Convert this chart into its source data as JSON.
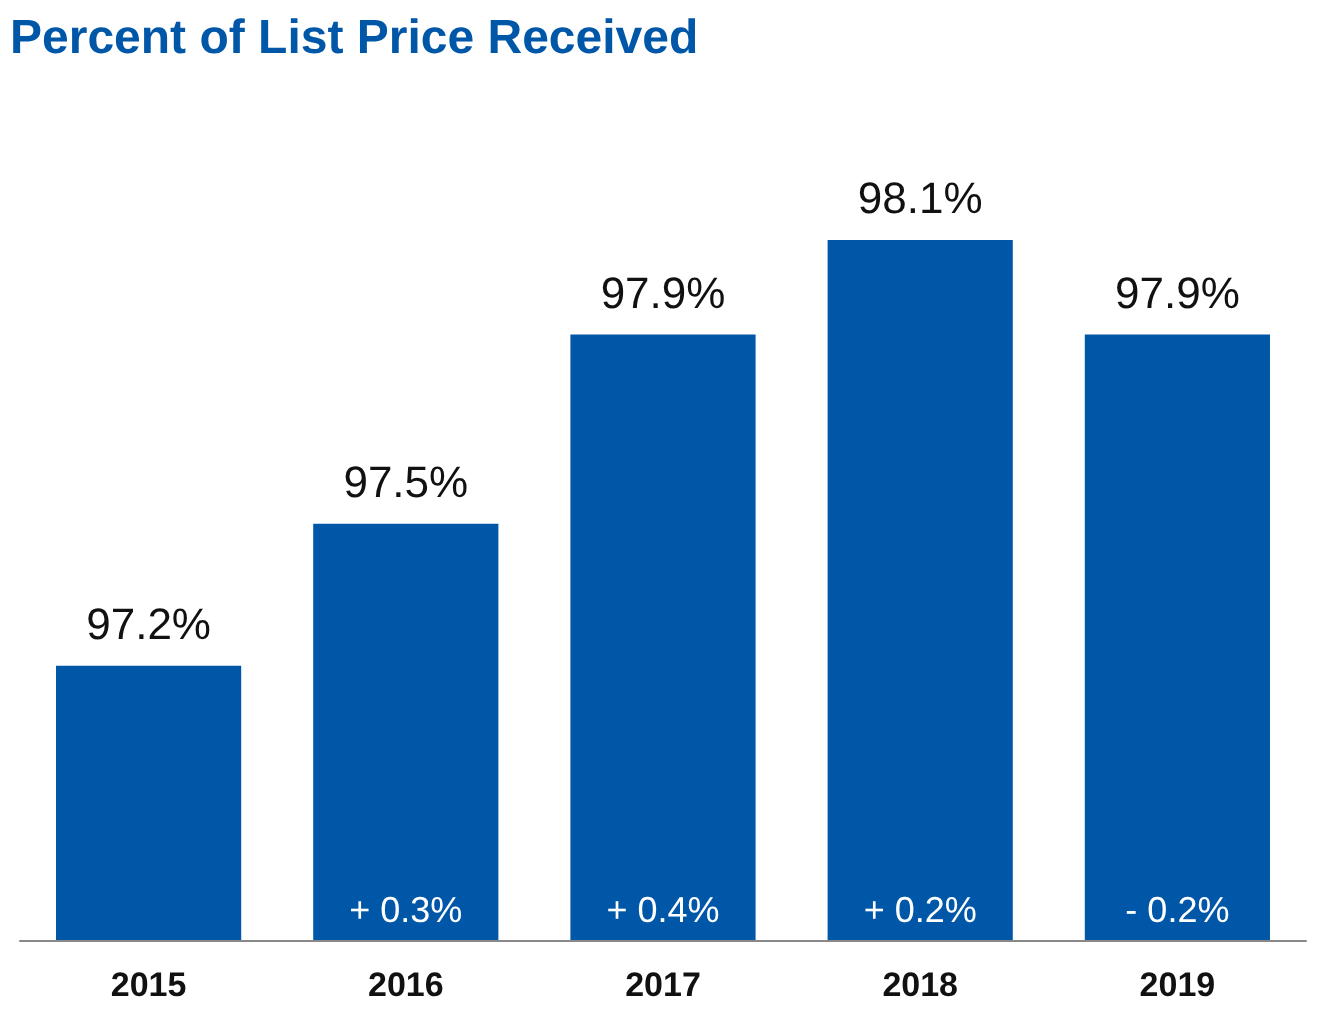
{
  "chart_data": {
    "type": "bar",
    "title": "Percent of List Price Received",
    "categories": [
      "2015",
      "2016",
      "2017",
      "2018",
      "2019"
    ],
    "values": [
      97.2,
      97.5,
      97.9,
      98.1,
      97.9
    ],
    "value_labels": [
      "97.2%",
      "97.5%",
      "97.9%",
      "98.1%",
      "97.9%"
    ],
    "color": "#0057a8",
    "ylim": [
      96.62,
      98.1
    ],
    "tick_labels": "x",
    "grid": false,
    "annotations": [
      "+ 0.3%",
      "+ 0.4%",
      "+ 0.2%",
      "- 0.2%"
    ]
  }
}
